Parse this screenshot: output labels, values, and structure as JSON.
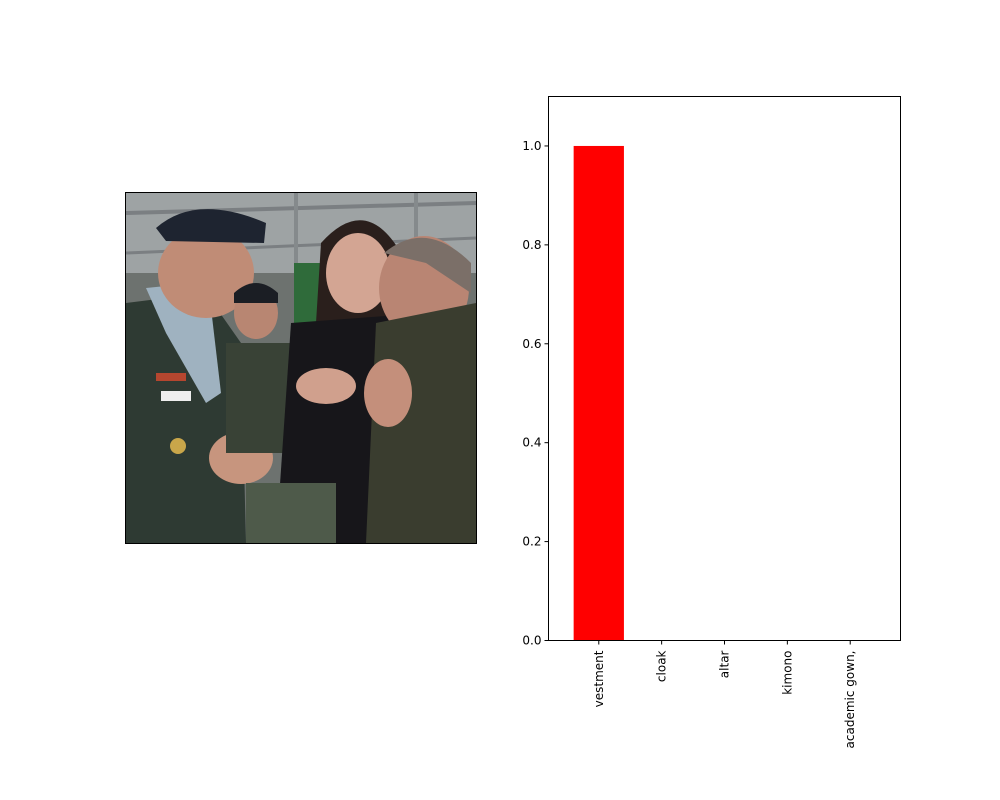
{
  "image_panel": {
    "subject": "photo"
  },
  "chart_data": {
    "type": "bar",
    "categories": [
      "vestment",
      "cloak",
      "altar",
      "kimono",
      "academic gown,"
    ],
    "values": [
      1.0,
      0.0,
      0.0,
      0.0,
      0.0
    ],
    "ylim": [
      0,
      1.1
    ],
    "yticks": [
      "0.0",
      "0.2",
      "0.4",
      "0.6",
      "0.8",
      "1.0"
    ],
    "bar_color": "#ff0000",
    "grid": false
  }
}
